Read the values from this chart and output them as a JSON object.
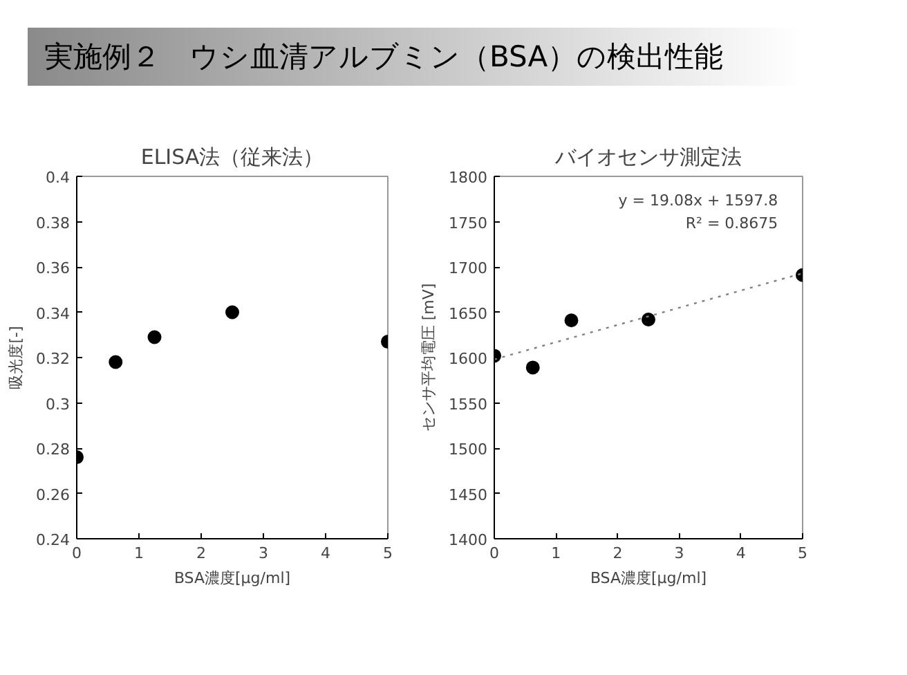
{
  "chart_data": [
    {
      "type": "scatter",
      "title": "ELISA法（従来法）",
      "xlabel": "BSA濃度[μg/ml]",
      "ylabel": "吸光度[-]",
      "annotations": [
        "実施例２　ウシ血清アルブミン（BSA）の検出性能"
      ],
      "x": [
        0,
        0.625,
        1.25,
        2.5,
        5
      ],
      "series": [
        {
          "color": "#000000",
          "values": [
            0.276,
            0.318,
            0.329,
            0.34,
            0.327
          ]
        }
      ],
      "xlim": [
        0,
        5
      ],
      "xticks": [
        0,
        1,
        2,
        3,
        4,
        5
      ],
      "ylim": [
        0.24,
        0.4
      ],
      "yticks": [
        {
          "value": 0.24,
          "label": "0.24"
        },
        {
          "value": 0.26,
          "label": "0.26"
        },
        {
          "value": 0.28,
          "label": "0.28"
        },
        {
          "value": 0.3,
          "label": "0.3"
        },
        {
          "value": 0.32,
          "label": "0.32"
        },
        {
          "value": 0.34,
          "label": "0.34"
        },
        {
          "value": 0.36,
          "label": "0.36"
        },
        {
          "value": 0.38,
          "label": "0.38"
        },
        {
          "value": 0.4,
          "label": "0.4"
        }
      ],
      "marker": "circle",
      "grid": false
    },
    {
      "type": "scatter",
      "title": "バイオセンサ測定法",
      "xlabel": "BSA濃度[μg/ml]",
      "ylabel": "センサ平均電圧 [mV]",
      "annotations": [
        "y = 19.08x + 1597.8",
        "R² = 0.8675"
      ],
      "x": [
        0,
        0.625,
        1.25,
        2.5,
        5
      ],
      "series": [
        {
          "color": "#000000",
          "values": [
            1602,
            1589,
            1641,
            1642,
            1691
          ]
        },
        {
          "type": "line",
          "marker": "none",
          "color": "#808080",
          "line_style": "dotted",
          "x": [
            0,
            5
          ],
          "values": [
            1598,
            1693
          ]
        }
      ],
      "xlim": [
        0,
        5
      ],
      "xticks": [
        0,
        1,
        2,
        3,
        4,
        5
      ],
      "ylim": [
        1400,
        1800
      ],
      "yticks": [
        1400,
        1450,
        1500,
        1550,
        1600,
        1650,
        1700,
        1750,
        1800
      ],
      "marker": "circle",
      "grid": false
    }
  ]
}
